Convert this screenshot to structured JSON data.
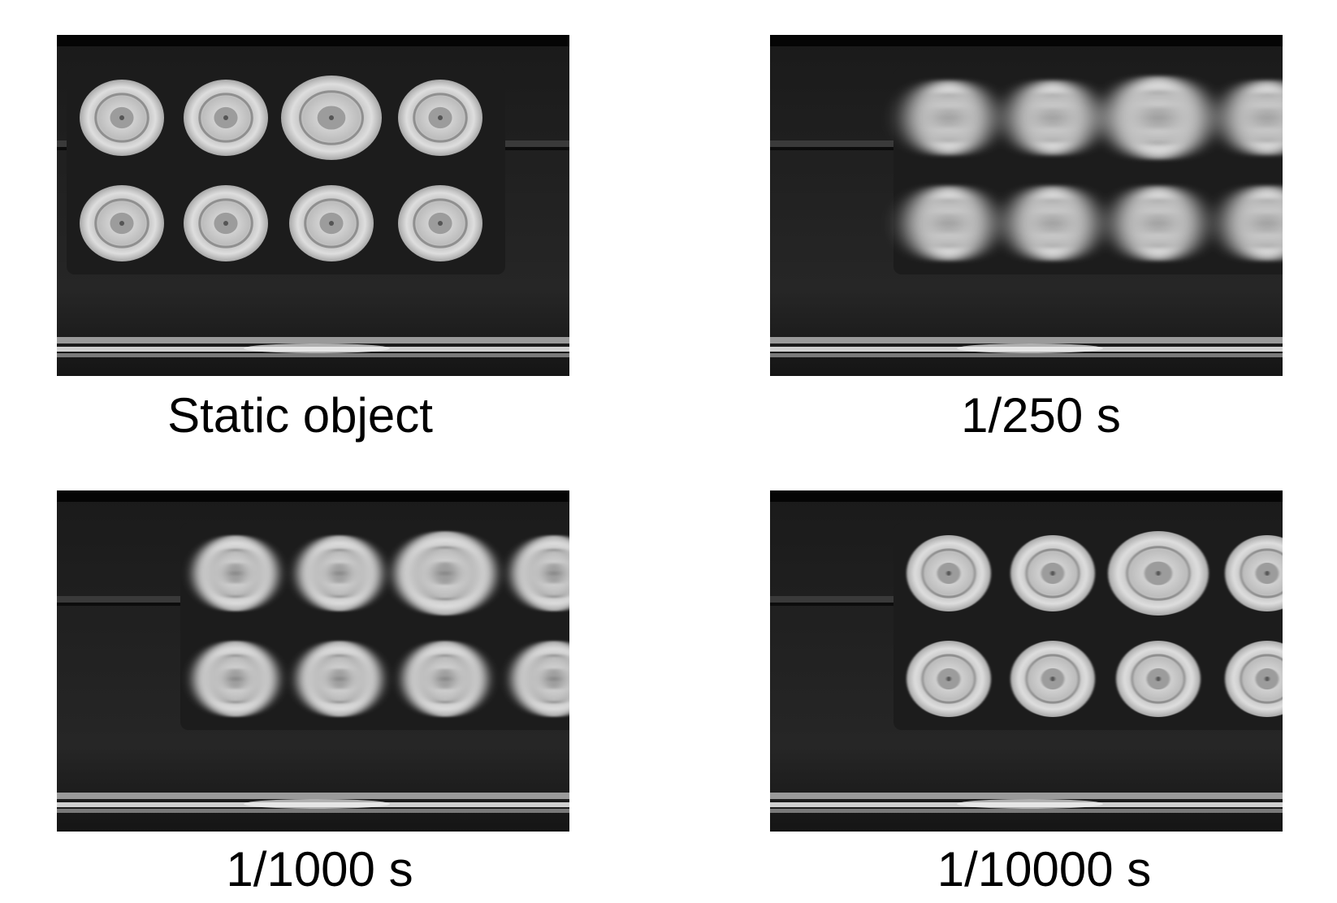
{
  "figure": {
    "panels": [
      {
        "caption": "Static object",
        "motion_blur_level": 0.0,
        "tray_offset": 0
      },
      {
        "caption": "1/250 s",
        "motion_blur_level": 1.0,
        "tray_offset": 1
      },
      {
        "caption": "1/1000 s",
        "motion_blur_level": 0.5,
        "tray_offset": 1
      },
      {
        "caption": "1/10000 s",
        "motion_blur_level": 0.1,
        "tray_offset": 1
      }
    ],
    "colors": {
      "background": "#ffffff",
      "photo_dark": "#121212",
      "object_light": "#d8d8d8"
    }
  }
}
